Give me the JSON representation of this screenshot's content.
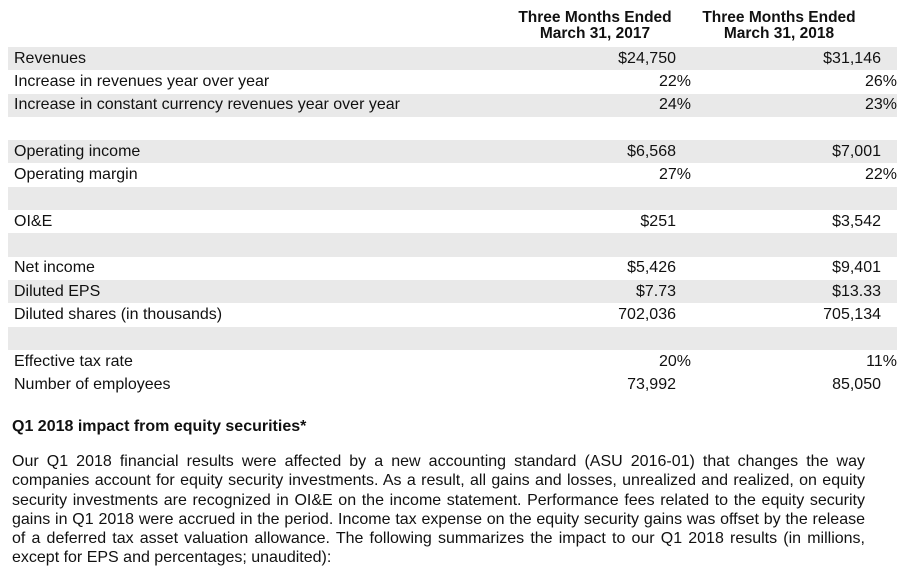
{
  "header": {
    "col1_line1": "Three Months Ended",
    "col1_line2": "March 31, 2017",
    "col2_line1": "Three Months Ended",
    "col2_line2": "March 31, 2018"
  },
  "rows": [
    {
      "label": "Revenues",
      "v1": "$24,750",
      "v2": "$31,146"
    },
    {
      "label": "Increase in revenues year over year",
      "v1": "22%",
      "v2": "26%"
    },
    {
      "label": "Increase in constant currency revenues year over year",
      "v1": "24%",
      "v2": "23%"
    },
    {
      "label": "",
      "v1": "",
      "v2": ""
    },
    {
      "label": "Operating income",
      "v1": "$6,568",
      "v2": "$7,001"
    },
    {
      "label": "Operating margin",
      "v1": "27%",
      "v2": "22%"
    },
    {
      "label": "",
      "v1": "",
      "v2": ""
    },
    {
      "label": "OI&E",
      "v1": "$251",
      "v2": "$3,542"
    },
    {
      "label": "",
      "v1": "",
      "v2": ""
    },
    {
      "label": "Net income",
      "v1": "$5,426",
      "v2": "$9,401"
    },
    {
      "label": "Diluted EPS",
      "v1": "$7.73",
      "v2": "$13.33"
    },
    {
      "label": "Diluted shares (in thousands)",
      "v1": "702,036",
      "v2": "705,134"
    },
    {
      "label": "",
      "v1": "",
      "v2": ""
    },
    {
      "label": "Effective tax rate",
      "v1": "20%",
      "v2": "11%"
    },
    {
      "label": "Number of employees",
      "v1": "73,992",
      "v2": "85,050"
    }
  ],
  "section": {
    "title": "Q1 2018 impact from equity securities*",
    "paragraph": "Our Q1 2018 financial results were affected by a new accounting standard (ASU 2016-01) that changes the way companies account for equity security investments. As a result, all gains and losses, unrealized and realized, on equity security investments are recognized in OI&E on the income statement. Performance fees related to the equity security gains in Q1 2018 were accrued in the period. Income tax expense on the equity security gains was offset by the release of a deferred tax asset valuation allowance. The following summarizes the impact to our Q1 2018 results (in millions, except for EPS and percentages; unaudited):"
  }
}
